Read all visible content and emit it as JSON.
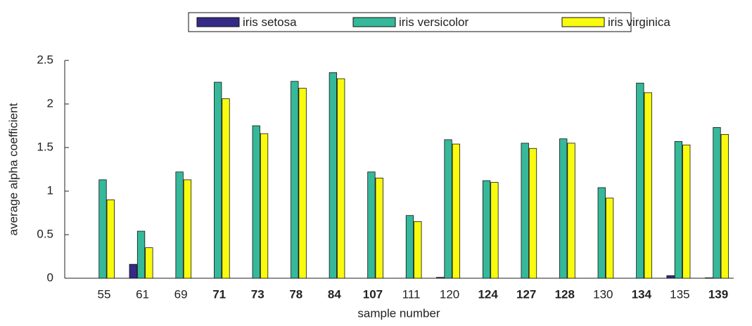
{
  "chart_data": {
    "type": "bar",
    "xlabel": "sample number",
    "ylabel": "average alpha coefficient",
    "categories": [
      "55",
      "61",
      "69",
      "71",
      "73",
      "78",
      "84",
      "107",
      "111",
      "120",
      "124",
      "127",
      "128",
      "130",
      "134",
      "135",
      "139"
    ],
    "category_bold": [
      false,
      false,
      false,
      true,
      true,
      true,
      true,
      true,
      false,
      false,
      true,
      true,
      true,
      false,
      true,
      false,
      true
    ],
    "series": [
      {
        "name": "iris setosa",
        "color": "#352a87",
        "values": [
          0,
          0.16,
          0,
          0,
          0,
          0,
          0,
          0,
          0,
          0.01,
          0,
          0,
          0,
          0,
          0,
          0.03,
          0.005
        ]
      },
      {
        "name": "iris versicolor",
        "color": "#36b89a",
        "values": [
          1.13,
          0.54,
          1.22,
          2.25,
          1.75,
          2.26,
          2.36,
          1.22,
          0.72,
          1.59,
          1.12,
          1.55,
          1.6,
          1.04,
          2.24,
          1.57,
          1.73
        ]
      },
      {
        "name": "iris virginica",
        "color": "#f9fb0e",
        "values": [
          0.9,
          0.35,
          1.13,
          2.06,
          1.66,
          2.18,
          2.29,
          1.15,
          0.65,
          1.54,
          1.1,
          1.49,
          1.55,
          0.92,
          2.13,
          1.53,
          1.65
        ]
      }
    ],
    "ylim": [
      0,
      2.5
    ],
    "yticks": [
      0,
      0.5,
      1,
      1.5,
      2,
      2.5
    ],
    "legend": "top"
  }
}
